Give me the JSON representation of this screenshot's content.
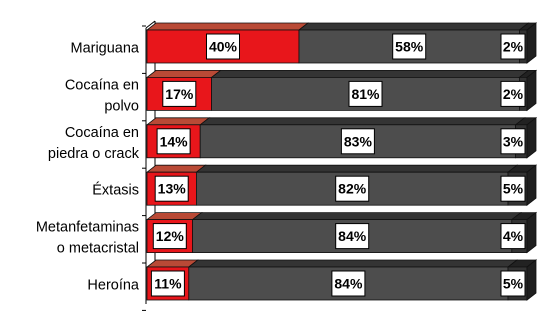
{
  "chart_data": {
    "type": "bar",
    "stacked": true,
    "orientation": "horizontal",
    "style": "3d",
    "categories": [
      [
        "Mariguana"
      ],
      [
        "Cocaína en",
        "polvo"
      ],
      [
        "Cocaína en",
        "piedra o crack"
      ],
      [
        "Éxtasis"
      ],
      [
        "Metanfetaminas",
        "o metacristal"
      ],
      [
        "Heroína"
      ]
    ],
    "series": [
      {
        "values": [
          40,
          17,
          14,
          13,
          12,
          11
        ],
        "color": "#e8161b",
        "side_color": "#b94a36"
      },
      {
        "values": [
          58,
          81,
          83,
          82,
          84,
          84
        ],
        "color": "#4d4d4d",
        "side_color": "#343434"
      },
      {
        "values": [
          2,
          2,
          3,
          5,
          4,
          5
        ],
        "color": "#333333",
        "side_color": "#222222"
      }
    ],
    "value_labels": [
      [
        "40%",
        "58%",
        "2%"
      ],
      [
        "17%",
        "81%",
        "2%"
      ],
      [
        "14%",
        "83%",
        "3%"
      ],
      [
        "13%",
        "82%",
        "5%"
      ],
      [
        "12%",
        "84%",
        "4%"
      ],
      [
        "11%",
        "84%",
        "5%"
      ]
    ],
    "xlim": [
      0,
      100
    ],
    "title": "",
    "xlabel": "",
    "ylabel": ""
  }
}
